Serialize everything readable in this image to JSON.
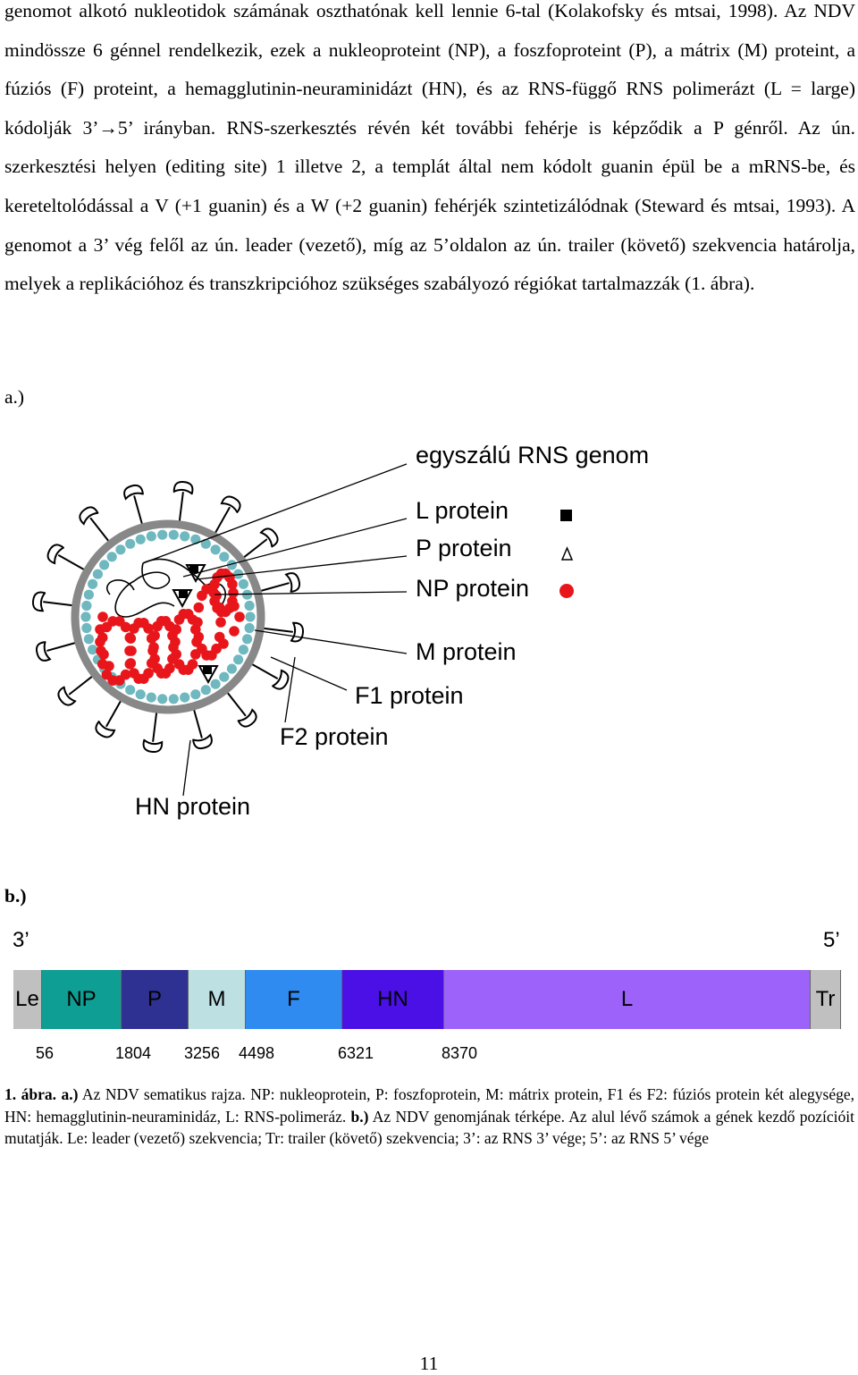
{
  "body": {
    "paragraph": "genomot alkotó nukleotidok számának oszthatónak kell lennie 6-tal (Kolakofsky és mtsai, 1998). Az NDV mindössze 6 génnel rendelkezik, ezek a nukleoproteint (NP), a foszfoproteint (P), a mátrix (M) proteint, a fúziós (F) proteint, a hemagglutinin-neuraminidázt (HN), és az RNS-függő RNS polimerázt (L = large) kódolják 3’→5’ irányban. RNS-szerkesztés révén két további fehérje is képződik a P génről. Az ún. szerkesztési helyen (editing site) 1 illetve 2, a templát által nem kódolt guanin épül be a mRNS-be, és kereteltolódással a V (+1 guanin) és a W (+2 guanin) fehérjék szintetizálódnak (Steward és mtsai, 1993). A genomot a 3’ vég felől az ún. leader (vezető), míg az 5’oldalon az ún. trailer (követő) szekvencia határolja, melyek a replikációhoz és transzkripcióhoz szükséges szabályozó régiókat tartalmazzák (1. ábra)."
  },
  "figure_a": {
    "label": "a.)",
    "labels": {
      "rna": "egyszálú RNS genom",
      "l": "L protein",
      "p": "P protein",
      "np": "NP protein",
      "m": "M protein",
      "f1": "F1 protein",
      "f2": "F2 protein",
      "hn": "HN protein"
    },
    "colors": {
      "np": "#e8161b",
      "m": "#6fb8bf",
      "membrane": "#888888"
    }
  },
  "figure_b": {
    "label": "b.)",
    "end_3": "3’",
    "end_5": "5’",
    "segments": [
      {
        "label": "Le",
        "color": "#c0c0c0",
        "length": 32
      },
      {
        "label": "NP",
        "color": "#0e9e93",
        "length": 89
      },
      {
        "label": "P",
        "color": "#2e3192",
        "length": 75
      },
      {
        "label": "M",
        "color": "#bde0e3",
        "length": 64
      },
      {
        "label": "F",
        "color": "#2f8bf0",
        "length": 108
      },
      {
        "label": "HN",
        "color": "#4b10e6",
        "length": 114
      },
      {
        "label": "L",
        "color": "#9c62fa",
        "length": 410
      },
      {
        "label": "Tr",
        "color": "#c0c0c0",
        "length": 34
      }
    ],
    "positions": [
      "56",
      "1804",
      "3256",
      "4498",
      "6321",
      "8370"
    ]
  },
  "caption": {
    "fig_num": "1. ábra.",
    "a_mark": "a.)",
    "a_text": " Az NDV sematikus rajza. NP: nukleoprotein, P: foszfoprotein, M: mátrix protein, F1 és F2: fúziós protein két alegysége, HN: hemagglutinin-neuraminidáz, L: RNS-polimeráz. ",
    "b_mark": "b.)",
    "b_text": " Az NDV genomjának térképe. Az alul lévő számok a gének kezdő pozícióit mutatják. Le: leader (vezető) szekvencia; Tr: trailer (követő) szekvencia; 3’: az RNS 3’ vége; 5’: az RNS 5’ vége"
  },
  "page_number": "11"
}
